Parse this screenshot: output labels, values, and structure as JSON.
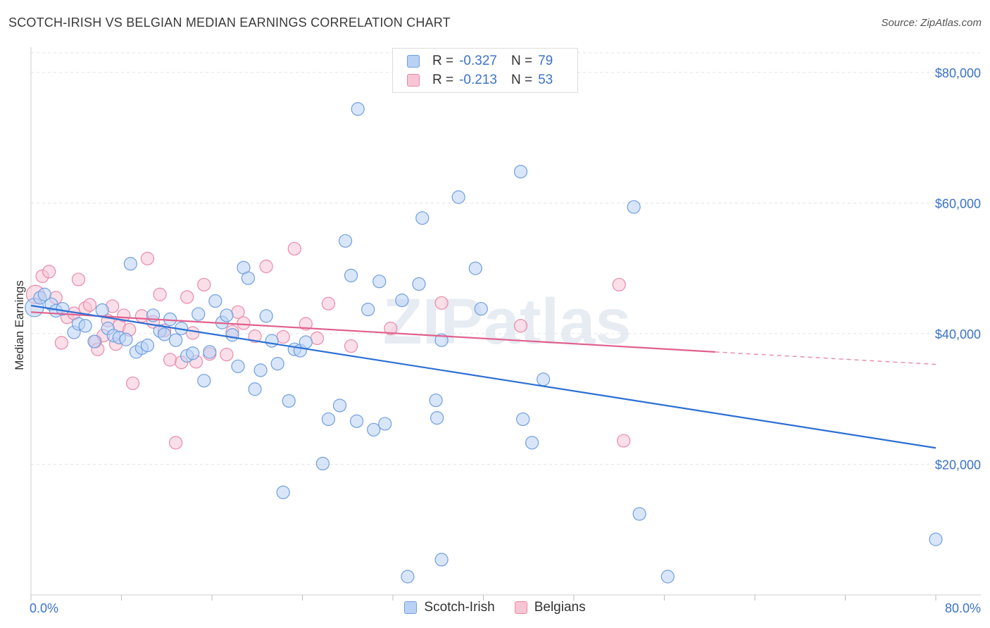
{
  "title": "SCOTCH-IRISH VS BELGIAN MEDIAN EARNINGS CORRELATION CHART",
  "source": "Source: ZipAtlas.com",
  "watermark": "ZIPatlas",
  "colors": {
    "blue_fill": "#b9d1f5",
    "blue_stroke": "#6f9fe0",
    "blue_line": "#2b6fd4",
    "pink_fill": "#f8c5d5",
    "pink_stroke": "#e98aa8",
    "pink_line": "#e0608e",
    "axis_text": "#3b73c9",
    "grid": "#e3e3e3"
  },
  "legend": {
    "rows": [
      {
        "r_label": "R =",
        "r_value": "-0.327",
        "n_label": "N =",
        "n_value": "79"
      },
      {
        "r_label": "R =",
        "r_value": "-0.213",
        "n_label": "N =",
        "n_value": "53"
      }
    ]
  },
  "bottom_legend": [
    "Scotch-Irish",
    "Belgians"
  ],
  "chart_data": {
    "type": "scatter",
    "xlabel": "",
    "ylabel": "Median Earnings",
    "xlim": [
      0,
      80
    ],
    "ylim": [
      0,
      83000
    ],
    "x_tick_labels": [
      "0.0%",
      "80.0%"
    ],
    "y_ticks": [
      20000,
      40000,
      60000,
      80000
    ],
    "y_tick_labels": [
      "$20,000",
      "$40,000",
      "$60,000",
      "$80,000"
    ],
    "grid": true,
    "series": [
      {
        "name": "Scotch-Irish",
        "trend": {
          "x": [
            0,
            80
          ],
          "y": [
            44300,
            22500
          ]
        },
        "points": [
          [
            0.3,
            44000
          ],
          [
            0.8,
            45500
          ],
          [
            1.2,
            46000
          ],
          [
            1.8,
            44500
          ],
          [
            2.2,
            43500
          ],
          [
            2.8,
            43800
          ],
          [
            3.8,
            40200
          ],
          [
            4.2,
            41500
          ],
          [
            4.8,
            41200
          ],
          [
            5.6,
            38800
          ],
          [
            6.3,
            43600
          ],
          [
            6.8,
            40800
          ],
          [
            7.3,
            39700
          ],
          [
            7.8,
            39400
          ],
          [
            8.4,
            39100
          ],
          [
            8.8,
            50700
          ],
          [
            9.3,
            37200
          ],
          [
            9.8,
            37800
          ],
          [
            10.3,
            38200
          ],
          [
            10.8,
            42800
          ],
          [
            11.4,
            40400
          ],
          [
            11.8,
            39900
          ],
          [
            12.3,
            42200
          ],
          [
            12.8,
            39000
          ],
          [
            13.3,
            40800
          ],
          [
            13.8,
            36600
          ],
          [
            14.3,
            37000
          ],
          [
            14.8,
            43000
          ],
          [
            15.3,
            32800
          ],
          [
            15.8,
            37200
          ],
          [
            16.3,
            45000
          ],
          [
            16.9,
            41700
          ],
          [
            17.3,
            42800
          ],
          [
            17.8,
            39800
          ],
          [
            18.3,
            35000
          ],
          [
            18.8,
            50100
          ],
          [
            19.2,
            48500
          ],
          [
            19.8,
            31500
          ],
          [
            20.3,
            34400
          ],
          [
            20.8,
            42700
          ],
          [
            21.3,
            38900
          ],
          [
            21.8,
            35400
          ],
          [
            22.3,
            15700
          ],
          [
            22.8,
            29700
          ],
          [
            23.3,
            37600
          ],
          [
            23.8,
            37400
          ],
          [
            24.3,
            38700
          ],
          [
            25.8,
            20100
          ],
          [
            26.3,
            26900
          ],
          [
            27.3,
            29000
          ],
          [
            27.8,
            54200
          ],
          [
            28.3,
            48900
          ],
          [
            28.8,
            26600
          ],
          [
            28.9,
            74400
          ],
          [
            29.8,
            43700
          ],
          [
            30.3,
            25300
          ],
          [
            30.8,
            48000
          ],
          [
            31.3,
            26200
          ],
          [
            32.8,
            45100
          ],
          [
            33.3,
            2800
          ],
          [
            34.3,
            47600
          ],
          [
            34.6,
            57700
          ],
          [
            35.8,
            29800
          ],
          [
            35.9,
            27100
          ],
          [
            36.3,
            5400
          ],
          [
            36.3,
            39000
          ],
          [
            37.8,
            60900
          ],
          [
            39.3,
            50000
          ],
          [
            39.8,
            43800
          ],
          [
            43.3,
            64800
          ],
          [
            43.5,
            26900
          ],
          [
            44.3,
            23300
          ],
          [
            45.3,
            33000
          ],
          [
            53.3,
            59400
          ],
          [
            53.8,
            12400
          ],
          [
            56.3,
            2800
          ],
          [
            80.0,
            8500
          ]
        ]
      },
      {
        "name": "Belgians",
        "trend": {
          "x": [
            0,
            60.5
          ],
          "y": [
            43300,
            37200
          ]
        },
        "trend_dashed": {
          "x": [
            60.5,
            80
          ],
          "y": [
            37200,
            35300
          ]
        },
        "points": [
          [
            0.4,
            46000
          ],
          [
            1.0,
            48800
          ],
          [
            1.6,
            49500
          ],
          [
            2.2,
            45500
          ],
          [
            2.7,
            38600
          ],
          [
            3.2,
            42500
          ],
          [
            3.8,
            43100
          ],
          [
            4.2,
            48300
          ],
          [
            4.8,
            43900
          ],
          [
            5.2,
            44400
          ],
          [
            5.7,
            38800
          ],
          [
            5.9,
            37600
          ],
          [
            6.4,
            39700
          ],
          [
            6.8,
            42000
          ],
          [
            7.2,
            44200
          ],
          [
            7.5,
            38400
          ],
          [
            7.8,
            41200
          ],
          [
            8.2,
            42800
          ],
          [
            8.7,
            40600
          ],
          [
            9.0,
            32400
          ],
          [
            9.8,
            42700
          ],
          [
            10.3,
            51500
          ],
          [
            10.8,
            41800
          ],
          [
            11.4,
            46000
          ],
          [
            11.8,
            40500
          ],
          [
            12.3,
            36000
          ],
          [
            12.8,
            23300
          ],
          [
            13.3,
            35600
          ],
          [
            13.8,
            45600
          ],
          [
            14.3,
            40100
          ],
          [
            14.6,
            35700
          ],
          [
            15.3,
            47500
          ],
          [
            15.8,
            36900
          ],
          [
            17.3,
            36800
          ],
          [
            17.8,
            40300
          ],
          [
            18.3,
            43300
          ],
          [
            18.8,
            41600
          ],
          [
            19.8,
            39600
          ],
          [
            20.8,
            50300
          ],
          [
            22.3,
            39500
          ],
          [
            23.3,
            53000
          ],
          [
            24.3,
            41500
          ],
          [
            25.3,
            39300
          ],
          [
            26.3,
            44600
          ],
          [
            28.3,
            38100
          ],
          [
            31.8,
            40800
          ],
          [
            36.3,
            44700
          ],
          [
            43.3,
            41200
          ],
          [
            52.0,
            47500
          ],
          [
            52.4,
            23600
          ]
        ]
      }
    ]
  }
}
